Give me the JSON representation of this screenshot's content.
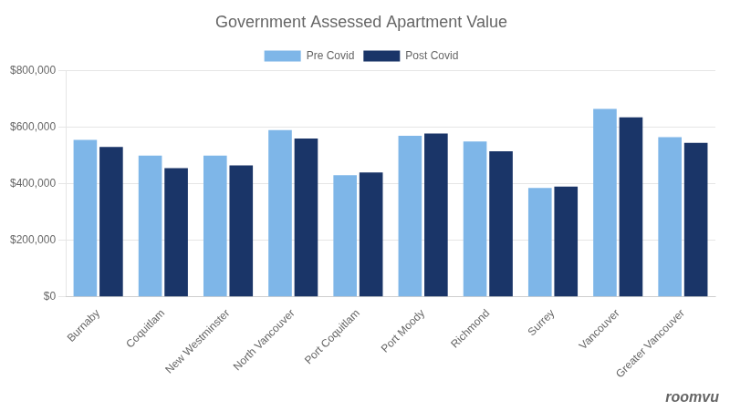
{
  "chart_data": {
    "type": "bar",
    "title": "Government Assessed Apartment Value",
    "categories": [
      "Burnaby",
      "Coquitlam",
      "New Westminster",
      "North Vancouver",
      "Port Coquitlam",
      "Port Moody",
      "Richmond",
      "Surrey",
      "Vancouver",
      "Greater Vancouver"
    ],
    "series": [
      {
        "name": "Pre Covid",
        "color": "#7eb6e8",
        "values": [
          555000,
          500000,
          500000,
          590000,
          430000,
          570000,
          550000,
          385000,
          665000,
          565000
        ]
      },
      {
        "name": "Post Covid",
        "color": "#1a3568",
        "values": [
          530000,
          455000,
          465000,
          560000,
          440000,
          578000,
          515000,
          390000,
          635000,
          545000
        ]
      }
    ],
    "ylim": [
      0,
      800000
    ],
    "yticks": [
      {
        "value": 0,
        "label": "$0"
      },
      {
        "value": 200000,
        "label": "$200,000"
      },
      {
        "value": 400000,
        "label": "$400,000"
      },
      {
        "value": 600000,
        "label": "$600,000"
      },
      {
        "value": 800000,
        "label": "$800,000"
      }
    ],
    "grid": true,
    "legend": "top",
    "annotations": [
      "roomvu"
    ]
  }
}
